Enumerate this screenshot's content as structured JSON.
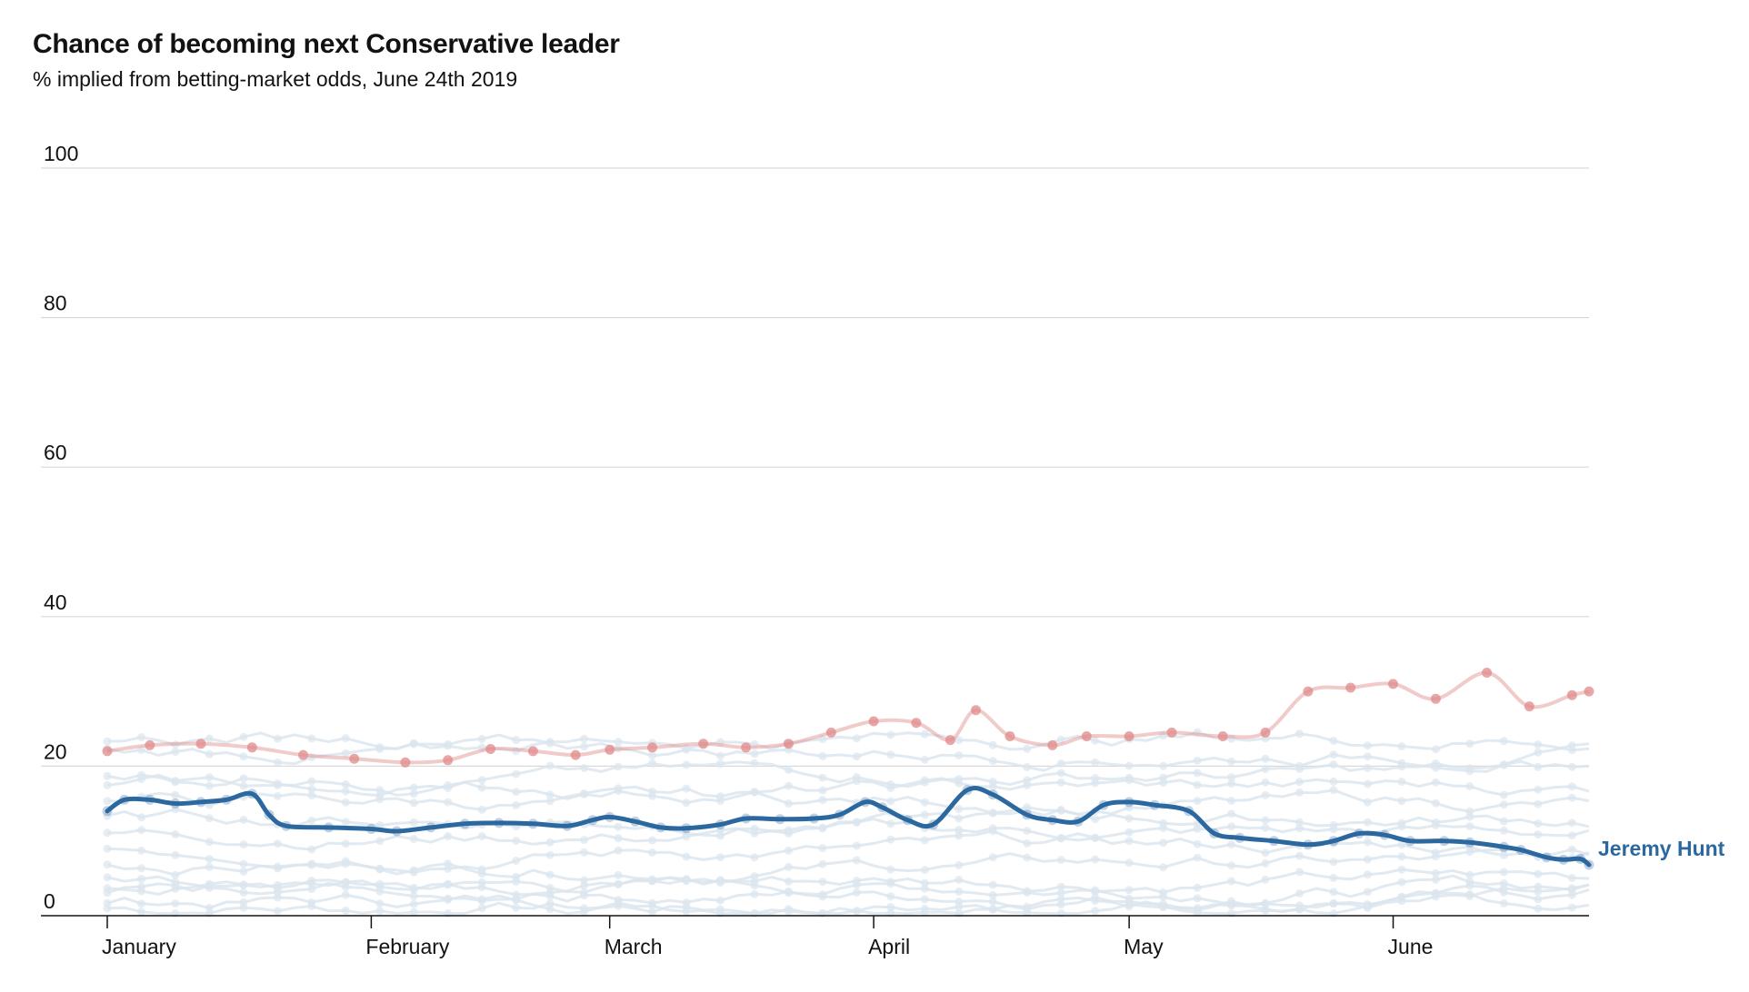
{
  "title": "Chance of becoming next Conservative leader",
  "subtitle": "% implied from betting-market odds, June 24th 2019",
  "colors": {
    "highlight": "#2b68a0",
    "leader": "#e08a8a",
    "background_series": "#dbe5ee",
    "grid": "#d9d9d9",
    "axis": "#121212"
  },
  "chart_data": {
    "type": "line",
    "title": "Chance of becoming next Conservative leader",
    "subtitle": "% implied from betting-market odds, June 24th 2019",
    "xlabel": "",
    "ylabel": "",
    "ylim": [
      0,
      100
    ],
    "yticks": [
      0,
      20,
      40,
      60,
      80,
      100
    ],
    "xlim": [
      "2019-01-01",
      "2019-06-24"
    ],
    "xticks": [
      {
        "date": "2019-01-01",
        "label": "January"
      },
      {
        "date": "2019-02-01",
        "label": "February"
      },
      {
        "date": "2019-03-01",
        "label": "March"
      },
      {
        "date": "2019-04-01",
        "label": "April"
      },
      {
        "date": "2019-05-01",
        "label": "May"
      },
      {
        "date": "2019-06-01",
        "label": "June"
      }
    ],
    "grid": true,
    "highlight_label": "Jeremy Hunt",
    "series": [
      {
        "role": "highlight",
        "name": "Jeremy Hunt",
        "points": [
          [
            "2019-01-01",
            14
          ],
          [
            "2019-01-03",
            15.5
          ],
          [
            "2019-01-06",
            15.5
          ],
          [
            "2019-01-09",
            15
          ],
          [
            "2019-01-12",
            15.2
          ],
          [
            "2019-01-15",
            15.5
          ],
          [
            "2019-01-18",
            16.3
          ],
          [
            "2019-01-20",
            13.5
          ],
          [
            "2019-01-22",
            12
          ],
          [
            "2019-01-27",
            11.8
          ],
          [
            "2019-02-01",
            11.6
          ],
          [
            "2019-02-04",
            11.3
          ],
          [
            "2019-02-08",
            11.8
          ],
          [
            "2019-02-12",
            12.3
          ],
          [
            "2019-02-16",
            12.4
          ],
          [
            "2019-02-20",
            12.3
          ],
          [
            "2019-02-24",
            12.0
          ],
          [
            "2019-02-27",
            12.8
          ],
          [
            "2019-03-01",
            13.2
          ],
          [
            "2019-03-04",
            12.6
          ],
          [
            "2019-03-07",
            11.8
          ],
          [
            "2019-03-10",
            11.7
          ],
          [
            "2019-03-14",
            12.2
          ],
          [
            "2019-03-17",
            13.0
          ],
          [
            "2019-03-21",
            12.9
          ],
          [
            "2019-03-25",
            13.0
          ],
          [
            "2019-03-28",
            13.5
          ],
          [
            "2019-03-31",
            15.2
          ],
          [
            "2019-04-02",
            14.5
          ],
          [
            "2019-04-05",
            12.8
          ],
          [
            "2019-04-08",
            12.2
          ],
          [
            "2019-04-12",
            16.8
          ],
          [
            "2019-04-15",
            16.2
          ],
          [
            "2019-04-19",
            13.5
          ],
          [
            "2019-04-22",
            12.8
          ],
          [
            "2019-04-25",
            12.6
          ],
          [
            "2019-04-28",
            14.8
          ],
          [
            "2019-05-01",
            15.2
          ],
          [
            "2019-05-04",
            14.8
          ],
          [
            "2019-05-08",
            14.0
          ],
          [
            "2019-05-11",
            11.0
          ],
          [
            "2019-05-14",
            10.4
          ],
          [
            "2019-05-18",
            10.0
          ],
          [
            "2019-05-22",
            9.5
          ],
          [
            "2019-05-25",
            10.0
          ],
          [
            "2019-05-28",
            11.0
          ],
          [
            "2019-05-31",
            10.8
          ],
          [
            "2019-06-03",
            10.0
          ],
          [
            "2019-06-07",
            10.0
          ],
          [
            "2019-06-10",
            9.8
          ],
          [
            "2019-06-14",
            9.2
          ],
          [
            "2019-06-16",
            8.8
          ],
          [
            "2019-06-19",
            7.8
          ],
          [
            "2019-06-21",
            7.5
          ],
          [
            "2019-06-23",
            7.6
          ],
          [
            "2019-06-24",
            6.8
          ]
        ]
      },
      {
        "role": "leader",
        "name": "",
        "points": [
          [
            "2019-01-01",
            22
          ],
          [
            "2019-01-06",
            22.8
          ],
          [
            "2019-01-12",
            23
          ],
          [
            "2019-01-18",
            22.5
          ],
          [
            "2019-01-24",
            21.5
          ],
          [
            "2019-01-30",
            21
          ],
          [
            "2019-02-05",
            20.5
          ],
          [
            "2019-02-10",
            20.8
          ],
          [
            "2019-02-15",
            22.3
          ],
          [
            "2019-02-20",
            22
          ],
          [
            "2019-02-25",
            21.5
          ],
          [
            "2019-03-01",
            22.2
          ],
          [
            "2019-03-06",
            22.5
          ],
          [
            "2019-03-12",
            23
          ],
          [
            "2019-03-17",
            22.5
          ],
          [
            "2019-03-22",
            23
          ],
          [
            "2019-03-27",
            24.5
          ],
          [
            "2019-04-01",
            26
          ],
          [
            "2019-04-06",
            25.8
          ],
          [
            "2019-04-10",
            23.5
          ],
          [
            "2019-04-13",
            27.5
          ],
          [
            "2019-04-17",
            24
          ],
          [
            "2019-04-22",
            22.8
          ],
          [
            "2019-04-26",
            24
          ],
          [
            "2019-05-01",
            24
          ],
          [
            "2019-05-06",
            24.5
          ],
          [
            "2019-05-12",
            24
          ],
          [
            "2019-05-17",
            24.5
          ],
          [
            "2019-05-22",
            30
          ],
          [
            "2019-05-27",
            30.5
          ],
          [
            "2019-06-01",
            31
          ],
          [
            "2019-06-06",
            29
          ],
          [
            "2019-06-12",
            32.5
          ],
          [
            "2019-06-17",
            28
          ],
          [
            "2019-06-22",
            29.5
          ],
          [
            "2019-06-24",
            30
          ]
        ]
      }
    ],
    "background_series_count": 14
  }
}
